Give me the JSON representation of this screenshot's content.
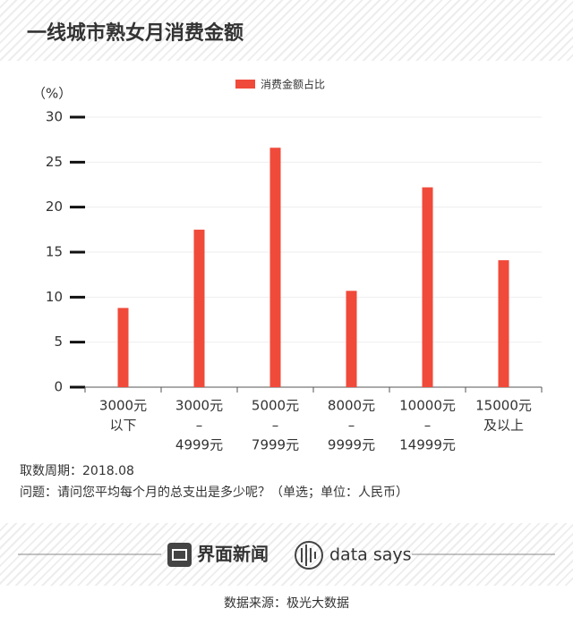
{
  "chart_data": {
    "type": "bar",
    "title": "一线城市熟女月消费金额",
    "y_unit": "（%）",
    "categories": [
      [
        "3000元",
        "以下"
      ],
      [
        "3000元",
        "–",
        "4999元"
      ],
      [
        "5000元",
        "–",
        "7999元"
      ],
      [
        "8000元",
        "–",
        "9999元"
      ],
      [
        "10000元",
        "–",
        "14999元"
      ],
      [
        "15000元",
        "及以上"
      ]
    ],
    "series": [
      {
        "name": "消费金额占比",
        "color": "#f04a3a",
        "values": [
          8.8,
          17.5,
          26.6,
          10.7,
          22.2,
          14.1
        ]
      }
    ],
    "ylim": [
      0,
      30
    ],
    "yticks": [
      0,
      5,
      10,
      15,
      20,
      25,
      30
    ],
    "grid": true,
    "legend": "top"
  },
  "notes": [
    "取数周期：2018.08",
    "问题：请问您平均每个月的总支出是多少呢？（单选；单位：人民币）"
  ],
  "brand": {
    "logo": "界面新闻",
    "tag": "data says"
  },
  "source": "数据来源：极光大数据"
}
